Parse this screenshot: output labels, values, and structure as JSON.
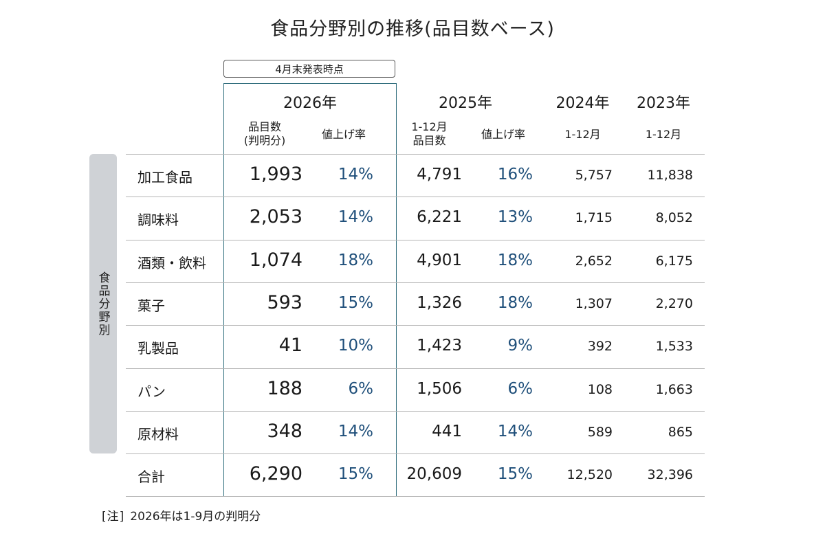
{
  "chart_data": {
    "type": "table",
    "title": "食品分野別の推移(品目数ベース)",
    "note_box": "4月末発表時点",
    "side_label": "食品分野別",
    "columns": {
      "y2026": {
        "year": "2026年",
        "count_label_1": "品目数",
        "count_label_2": "(判明分)",
        "rate_label": "値上げ率"
      },
      "y2025": {
        "year": "2025年",
        "count_label_1": "1-12月",
        "count_label_2": "品目数",
        "rate_label": "値上げ率"
      },
      "y2024": {
        "year": "2024年",
        "period": "1-12月"
      },
      "y2023": {
        "year": "2023年",
        "period": "1-12月"
      }
    },
    "rows": [
      {
        "category": "加工食品",
        "c2026": "1,993",
        "r2026": "14%",
        "c2025": "4,791",
        "r2025": "16%",
        "c2024": "5,757",
        "c2023": "11,838"
      },
      {
        "category": "調味料",
        "c2026": "2,053",
        "r2026": "14%",
        "c2025": "6,221",
        "r2025": "13%",
        "c2024": "1,715",
        "c2023": "8,052"
      },
      {
        "category": "酒類・飲料",
        "c2026": "1,074",
        "r2026": "18%",
        "c2025": "4,901",
        "r2025": "18%",
        "c2024": "2,652",
        "c2023": "6,175"
      },
      {
        "category": "菓子",
        "c2026": "593",
        "r2026": "15%",
        "c2025": "1,326",
        "r2025": "18%",
        "c2024": "1,307",
        "c2023": "2,270"
      },
      {
        "category": "乳製品",
        "c2026": "41",
        "r2026": "10%",
        "c2025": "1,423",
        "r2025": "9%",
        "c2024": "392",
        "c2023": "1,533"
      },
      {
        "category": "パン",
        "c2026": "188",
        "r2026": "6%",
        "c2025": "1,506",
        "r2025": "6%",
        "c2024": "108",
        "c2023": "1,663"
      },
      {
        "category": "原材料",
        "c2026": "348",
        "r2026": "14%",
        "c2025": "441",
        "r2025": "14%",
        "c2024": "589",
        "c2023": "865"
      }
    ],
    "total": {
      "category": "合計",
      "c2026": "6,290",
      "r2026": "15%",
      "c2025": "20,609",
      "r2025": "15%",
      "c2024": "12,520",
      "c2023": "32,396"
    },
    "footnote": {
      "bracket": "[注]",
      "text": "2026年は1-9月の判明分"
    }
  }
}
